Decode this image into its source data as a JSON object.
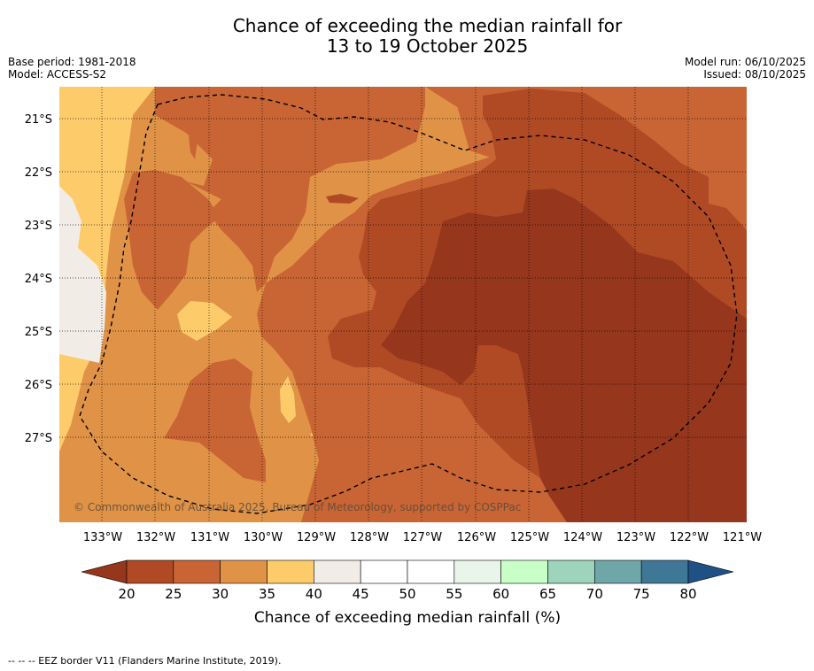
{
  "title_line1": "Chance of exceeding the median rainfall for",
  "title_line2": "13 to 19 October 2025",
  "base_period": "Base period: 1981-2018",
  "model": "Model: ACCESS-S2",
  "model_run": "Model run: 06/10/2025",
  "issued": "Issued: 08/10/2025",
  "copyright": "© Commonwealth of Australia 2025, Bureau of Meteorology, supported by COSPPac",
  "lat_labels": [
    "21°S",
    "22°S",
    "23°S",
    "24°S",
    "25°S",
    "26°S",
    "27°S"
  ],
  "lon_labels": [
    "133°W",
    "132°W",
    "131°W",
    "130°W",
    "129°W",
    "128°W",
    "127°W",
    "126°W",
    "125°W",
    "124°W",
    "123°W",
    "122°W",
    "121°W"
  ],
  "colorbar": {
    "ticks": [
      "20",
      "25",
      "30",
      "35",
      "40",
      "45",
      "50",
      "55",
      "60",
      "65",
      "70",
      "75",
      "80"
    ],
    "label": "Chance of exceeding median rainfall (%)",
    "colors": [
      "#96361d",
      "#b04a25",
      "#c96534",
      "#e09347",
      "#fecb6b",
      "#f1ede6",
      "#ffffff",
      "#ffffff",
      "#e9f5e8",
      "#c7ffc7",
      "#9ed4bb",
      "#6fa6a8",
      "#3f7897",
      "#1f5086"
    ]
  },
  "footer": "--  --  -- EEZ border V11 (Flanders Marine Institute, 2019)."
}
